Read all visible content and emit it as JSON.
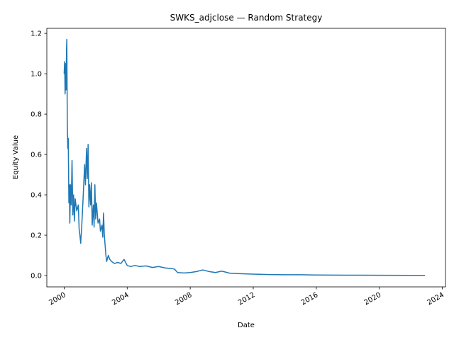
{
  "chart_data": {
    "type": "line",
    "title": "SWKS_adjclose — Random Strategy",
    "xlabel": "Date",
    "ylabel": "Equity Value",
    "color": "#1f77b4",
    "x": [
      2000.0,
      2000.03,
      2000.06,
      2000.09,
      2000.12,
      2000.15,
      2000.17,
      2000.2,
      2000.23,
      2000.26,
      2000.3,
      2000.33,
      2000.36,
      2000.4,
      2000.45,
      2000.5,
      2000.55,
      2000.6,
      2000.65,
      2000.7,
      2000.8,
      2000.9,
      2000.95,
      2001.0,
      2001.05,
      2001.12,
      2001.2,
      2001.3,
      2001.35,
      2001.42,
      2001.47,
      2001.52,
      2001.57,
      2001.62,
      2001.68,
      2001.73,
      2001.78,
      2001.85,
      2001.9,
      2001.95,
      2002.0,
      2002.05,
      2002.15,
      2002.25,
      2002.3,
      2002.4,
      2002.45,
      2002.5,
      2002.55,
      2002.6,
      2002.65,
      2002.7,
      2002.8,
      2002.9,
      2003.0,
      2003.2,
      2003.4,
      2003.6,
      2003.8,
      2003.9,
      2004.0,
      2004.2,
      2004.5,
      2004.8,
      2005.2,
      2005.6,
      2006.0,
      2006.4,
      2006.8,
      2007.0,
      2007.2,
      2007.6,
      2008.0,
      2008.4,
      2008.8,
      2009.2,
      2009.6,
      2010.0,
      2010.5,
      2011.0,
      2012.0,
      2013.0,
      2014.0,
      2015.0,
      2016.0,
      2018.0,
      2020.0,
      2022.0,
      2022.9
    ],
    "values": [
      1.0,
      1.06,
      0.9,
      1.05,
      0.92,
      1.12,
      1.17,
      0.75,
      0.63,
      0.68,
      0.36,
      0.45,
      0.26,
      0.45,
      0.35,
      0.57,
      0.3,
      0.4,
      0.27,
      0.38,
      0.32,
      0.35,
      0.23,
      0.2,
      0.16,
      0.25,
      0.38,
      0.55,
      0.45,
      0.63,
      0.48,
      0.65,
      0.34,
      0.45,
      0.35,
      0.46,
      0.25,
      0.35,
      0.24,
      0.45,
      0.28,
      0.36,
      0.26,
      0.28,
      0.22,
      0.25,
      0.19,
      0.31,
      0.2,
      0.15,
      0.1,
      0.07,
      0.1,
      0.08,
      0.07,
      0.06,
      0.065,
      0.06,
      0.08,
      0.065,
      0.05,
      0.045,
      0.05,
      0.045,
      0.048,
      0.04,
      0.045,
      0.038,
      0.035,
      0.032,
      0.015,
      0.013,
      0.015,
      0.02,
      0.028,
      0.02,
      0.015,
      0.022,
      0.012,
      0.01,
      0.007,
      0.005,
      0.004,
      0.004,
      0.003,
      0.002,
      0.0015,
      0.001,
      0.001
    ],
    "xlim": [
      1998.9,
      2024.2
    ],
    "xticks": [
      2000,
      2004,
      2008,
      2012,
      2016,
      2020,
      2024
    ],
    "ylim": [
      -0.056,
      1.225
    ],
    "yticks": [
      {
        "value": 0,
        "label": "0.0"
      },
      0.2,
      0.4,
      0.6,
      0.8,
      {
        "value": 1,
        "label": "1.0"
      },
      1.2
    ]
  }
}
